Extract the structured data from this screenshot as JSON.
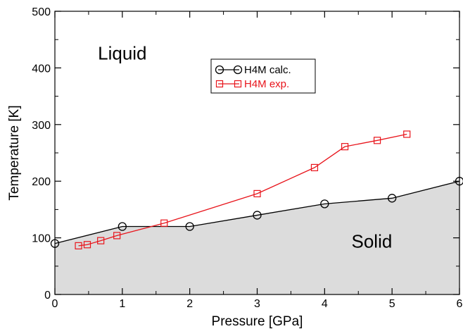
{
  "chart_data": {
    "type": "line",
    "xlabel": "Pressure  [GPa]",
    "ylabel": "Temperature  [K]",
    "xlim": [
      0,
      6
    ],
    "ylim": [
      0,
      500
    ],
    "x_ticks": [
      0,
      1,
      2,
      3,
      4,
      5,
      6
    ],
    "y_ticks": [
      0,
      100,
      200,
      300,
      400,
      500
    ],
    "grid": false,
    "legend_position": "top-center",
    "region_labels": [
      {
        "text": "Liquid",
        "x": 1.0,
        "y": 415
      },
      {
        "text": "Solid",
        "x": 4.7,
        "y": 83
      }
    ],
    "filled_region": {
      "below_series": "H4M calc.",
      "color": "#dcdcdc"
    },
    "series": [
      {
        "name": "H4M calc.",
        "color": "#000000",
        "marker": "circle",
        "x": [
          0,
          1,
          2,
          3,
          4,
          5,
          6
        ],
        "y": [
          90,
          120,
          120,
          140,
          160,
          170,
          200
        ]
      },
      {
        "name": "H4M exp.",
        "color": "#e8141b",
        "marker": "square",
        "x": [
          0.35,
          0.48,
          0.68,
          0.92,
          1.62,
          3.0,
          3.85,
          4.3,
          4.78,
          5.22
        ],
        "y": [
          86,
          88,
          95,
          104,
          126,
          178,
          224,
          261,
          272,
          283
        ]
      }
    ]
  }
}
